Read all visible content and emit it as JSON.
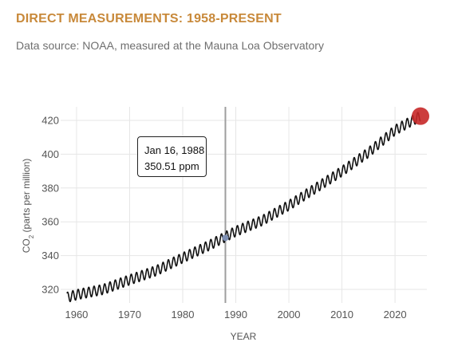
{
  "header": {
    "title": "DIRECT MEASUREMENTS: 1958-PRESENT",
    "subtitle": "Data source: NOAA, measured at the Mauna Loa Observatory"
  },
  "tooltip": {
    "date": "Jan 16, 1988",
    "value": "350.51 ppm"
  },
  "colors": {
    "title": "#c8893a",
    "line": "#111111",
    "marker": "#c62828",
    "cursor": "#9e9e9e",
    "grid": "#e6e6e6"
  },
  "chart_data": {
    "type": "line",
    "xlabel": "YEAR",
    "ylabel_main": "CO",
    "ylabel_sub": "2",
    "ylabel_rest": " (parts per million)",
    "xlim": [
      1957,
      2026
    ],
    "ylim": [
      312,
      428
    ],
    "x_ticks": [
      1960,
      1970,
      1980,
      1990,
      2000,
      2010,
      2020
    ],
    "y_ticks": [
      320,
      340,
      360,
      380,
      400,
      420
    ],
    "grid": true,
    "cursor_x": 1988.04,
    "cursor_y": 350.51,
    "latest_point": [
      2024.8,
      422.5
    ],
    "series": [
      {
        "seasonal_amplitude_ppm": 3.0,
        "trend_points": [
          [
            1958.2,
            315.3
          ],
          [
            1960,
            316.9
          ],
          [
            1965,
            320.0
          ],
          [
            1970,
            325.7
          ],
          [
            1975,
            331.1
          ],
          [
            1980,
            338.7
          ],
          [
            1985,
            346.1
          ],
          [
            1990,
            354.4
          ],
          [
            1995,
            360.8
          ],
          [
            2000,
            369.7
          ],
          [
            2005,
            379.8
          ],
          [
            2010,
            389.9
          ],
          [
            2015,
            401.0
          ],
          [
            2020,
            414.2
          ],
          [
            2024.8,
            422.5
          ]
        ]
      }
    ]
  }
}
